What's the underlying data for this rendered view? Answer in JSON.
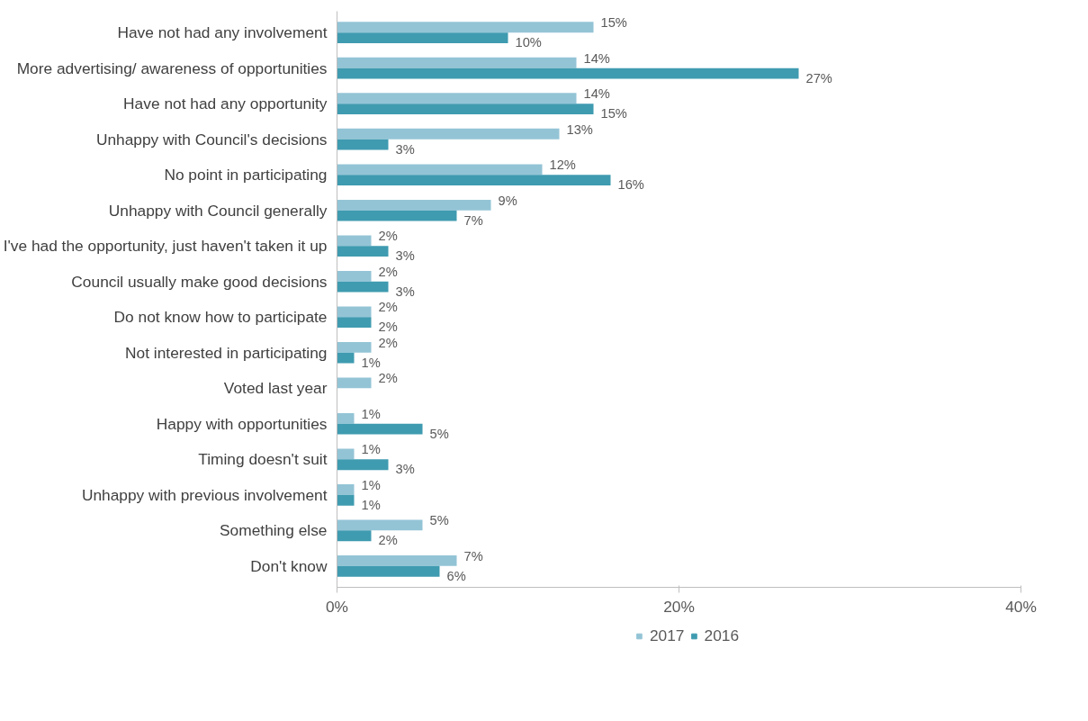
{
  "chart_data": {
    "type": "bar",
    "orientation": "horizontal",
    "categories": [
      "Have not had any involvement",
      "More advertising/ awareness of opportunities",
      "Have not had any opportunity",
      "Unhappy with Council's decisions",
      "No point in participating",
      "Unhappy with Council generally",
      "I've had the opportunity, just haven't taken it up",
      "Council usually make good decisions",
      "Do not know how to participate",
      "Not interested in participating",
      "Voted last year",
      "Happy with opportunities",
      "Timing doesn't suit",
      "Unhappy with previous involvement",
      "Something else",
      "Don't know"
    ],
    "series": [
      {
        "name": "2017",
        "color": "#93c4d6",
        "values": [
          15,
          14,
          14,
          13,
          12,
          9,
          2,
          2,
          2,
          2,
          2,
          1,
          1,
          1,
          5,
          7
        ],
        "value_labels": [
          "15%",
          "14%",
          "14%",
          "13%",
          "12%",
          "9%",
          "2%",
          "2%",
          "2%",
          "2%",
          "2%",
          "1%",
          "1%",
          "1%",
          "5%",
          "7%"
        ]
      },
      {
        "name": "2016",
        "color": "#3f9bb0",
        "values": [
          10,
          27,
          15,
          3,
          16,
          7,
          3,
          3,
          2,
          1,
          null,
          5,
          3,
          1,
          2,
          6
        ],
        "value_labels": [
          "10%",
          "27%",
          "15%",
          "3%",
          "16%",
          "7%",
          "3%",
          "3%",
          "2%",
          "1%",
          null,
          "5%",
          "3%",
          "1%",
          "2%",
          "6%"
        ]
      }
    ],
    "xlim": [
      0,
      40
    ],
    "xticks": [
      {
        "value": 0,
        "label": "0%"
      },
      {
        "value": 20,
        "label": "20%"
      },
      {
        "value": 40,
        "label": "40%"
      }
    ],
    "grid": false,
    "legend": "bottom"
  }
}
